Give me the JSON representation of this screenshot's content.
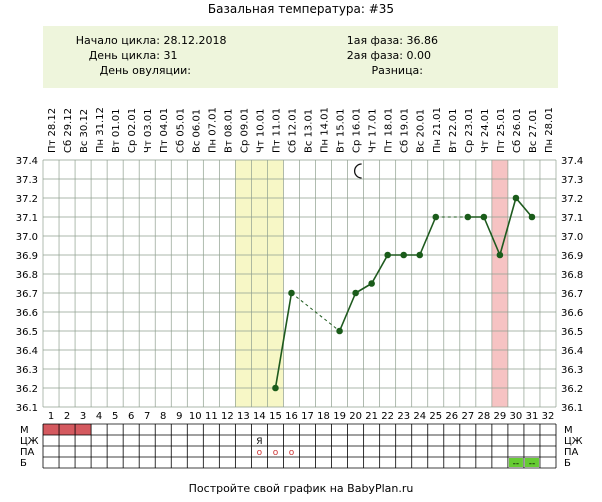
{
  "title": "Базальная температура: #35",
  "info": {
    "cycle_start_label": "Начало цикла:",
    "cycle_start_value": "28.12.2018",
    "cycle_day_label": "День цикла:",
    "cycle_day_value": "31",
    "ovulation_day_label": "День овуляции:",
    "ovulation_day_value": "",
    "phase1_label": "1ая фаза:",
    "phase1_value": "36.86",
    "phase2_label": "2ая фаза:",
    "phase2_value": "0.00",
    "difference_label": "Разница:",
    "difference_value": ""
  },
  "footer": "Постройте свой график на BabyPlan.ru",
  "colors": {
    "line": "#1e5a1e",
    "point": "#1a5c1a",
    "highlight_yellow": "#f7f7c6",
    "highlight_red": "#f6c3c3",
    "menses": "#d4595f",
    "b_mark": "#66cc33",
    "grid": "#8f9f8f",
    "marker": "#cc3333"
  },
  "chart_data": {
    "type": "line",
    "dates": [
      "Пт 28.12",
      "Сб 29.12",
      "Вс 30.12",
      "Пн 31.12",
      "Вт 01.01",
      "Ср 02.01",
      "Чт 03.01",
      "Пт 04.01",
      "Сб 05.01",
      "Вс 06.01",
      "Пн 07.01",
      "Вт 08.01",
      "Ср 09.01",
      "Чт 10.01",
      "Пт 11.01",
      "Сб 12.01",
      "Вс 13.01",
      "Пн 14.01",
      "Вт 15.01",
      "Ср 16.01",
      "Чт 17.01",
      "Пт 18.01",
      "Сб 19.01",
      "Вс 20.01",
      "Пн 21.01",
      "Вт 22.01",
      "Ср 23.01",
      "Чт 24.01",
      "Пт 25.01",
      "Сб 26.01",
      "Вс 27.01",
      "Пн 28.01"
    ],
    "days": [
      1,
      2,
      3,
      4,
      5,
      6,
      7,
      8,
      9,
      10,
      11,
      12,
      13,
      14,
      15,
      16,
      17,
      18,
      19,
      20,
      21,
      22,
      23,
      24,
      25,
      26,
      27,
      28,
      29,
      30,
      31,
      32
    ],
    "ylim": [
      36.1,
      37.4
    ],
    "yticks": [
      "37.4",
      "37.3",
      "37.2",
      "37.1",
      "37.0",
      "36.9",
      "36.8",
      "36.7",
      "36.6",
      "36.5",
      "36.4",
      "36.3",
      "36.2",
      "36.1"
    ],
    "grid": true,
    "series": [
      {
        "values": [
          null,
          null,
          null,
          null,
          null,
          null,
          null,
          null,
          null,
          null,
          null,
          null,
          null,
          null,
          36.2,
          36.7,
          null,
          null,
          36.5,
          36.7,
          36.75,
          36.9,
          36.9,
          36.9,
          37.1,
          null,
          37.1,
          37.1,
          36.9,
          37.2,
          37.1,
          null
        ]
      }
    ],
    "highlight_days": [
      {
        "from": 13,
        "to": 15,
        "kind": "yellow"
      },
      {
        "from": 29,
        "to": 29,
        "kind": "red"
      }
    ],
    "moon_day": 20,
    "rows": [
      {
        "label": "М",
        "filled_days": [
          1,
          2,
          3
        ],
        "marks": []
      },
      {
        "label": "ЦЖ",
        "filled_days": [],
        "marks": [
          {
            "day": 14,
            "text": "Я"
          }
        ]
      },
      {
        "label": "ПА",
        "filled_days": [],
        "marks": [
          {
            "day": 14,
            "text": "o"
          },
          {
            "day": 15,
            "text": "o"
          },
          {
            "day": 16,
            "text": "o"
          }
        ]
      },
      {
        "label": "Б",
        "filled_days": [],
        "marks": [
          {
            "day": 30,
            "text": "--"
          },
          {
            "day": 31,
            "text": "--"
          }
        ]
      }
    ]
  }
}
